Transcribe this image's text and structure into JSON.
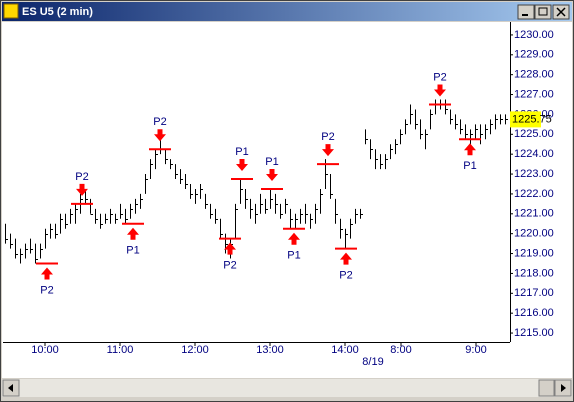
{
  "window": {
    "title": "ES U5 (2 min)"
  },
  "chart_data": {
    "type": "ohlc",
    "bar_color": "#000000",
    "marker_color": "#ff0000",
    "axis_text_color": "#000080",
    "last_price_color": "#ffff00",
    "xlim": [
      -0.4,
      101
    ],
    "ylim": [
      1214.55,
      1230.65
    ],
    "yticks": [
      {
        "value": 1215,
        "label": "1215.00"
      },
      {
        "value": 1216,
        "label": "1216.00"
      },
      {
        "value": 1217,
        "label": "1217.00"
      },
      {
        "value": 1218,
        "label": "1218.00"
      },
      {
        "value": 1219,
        "label": "1219.00"
      },
      {
        "value": 1220,
        "label": "1220.00"
      },
      {
        "value": 1221,
        "label": "1221.00"
      },
      {
        "value": 1222,
        "label": "1222.00"
      },
      {
        "value": 1223,
        "label": "1223.00"
      },
      {
        "value": 1224,
        "label": "1224.00"
      },
      {
        "value": 1225,
        "label": "1225.00"
      },
      {
        "value": 1226,
        "label": "1226.00"
      },
      {
        "value": 1227,
        "label": "1227.00"
      },
      {
        "value": 1228,
        "label": "1228.00"
      },
      {
        "value": 1229,
        "label": "1229.00"
      },
      {
        "value": 1230,
        "label": "1230.00"
      }
    ],
    "xticks": [
      {
        "value": 8,
        "label": "10:00"
      },
      {
        "value": 23,
        "label": "11:00"
      },
      {
        "value": 38,
        "label": "12:00"
      },
      {
        "value": 53,
        "label": "13:00"
      },
      {
        "value": 68,
        "label": "14:00"
      },
      {
        "value": 79.2,
        "label": "8:00"
      },
      {
        "value": 94.2,
        "label": "9:00"
      }
    ],
    "date_ticks": [
      {
        "value": 73.6,
        "label": "8/19"
      }
    ],
    "last_price": 1225.75,
    "bars": {
      "high": [
        1220.5,
        1220.0,
        1219.75,
        1219.25,
        1219.5,
        1219.75,
        1219.5,
        1219.5,
        1220.25,
        1220.5,
        1220.5,
        1221.0,
        1221.0,
        1221.25,
        1221.5,
        1222.0,
        1222.25,
        1221.75,
        1221.25,
        1221.0,
        1221.0,
        1221.25,
        1221.0,
        1221.5,
        1221.25,
        1221.5,
        1221.75,
        1222.0,
        1223.0,
        1223.75,
        1224.25,
        1224.75,
        1224.25,
        1223.75,
        1223.5,
        1223.25,
        1223.0,
        1222.5,
        1222.25,
        1222.5,
        1222.0,
        1221.5,
        1221.25,
        1220.75,
        1220.0,
        1219.75,
        1221.5,
        1222.75,
        1222.25,
        1221.75,
        1221.5,
        1222.0,
        1221.75,
        1222.25,
        1222.0,
        1221.5,
        1221.75,
        1221.25,
        1221.0,
        1221.25,
        1221.5,
        1221.0,
        1221.5,
        1222.25,
        1223.75,
        1223.0,
        1221.75,
        1220.75,
        1220.25,
        1220.75,
        1221.25,
        1221.25,
        1225.25,
        1224.75,
        1224.25,
        1224.0,
        1224.0,
        1224.5,
        1224.75,
        1225.25,
        1225.75,
        1226.5,
        1226.25,
        1225.75,
        1225.25,
        1226.25,
        1226.75,
        1226.75,
        1226.75,
        1226.25,
        1226.0,
        1225.75,
        1225.5,
        1225.25,
        1225.5,
        1225.5,
        1225.5,
        1225.75,
        1226.0,
        1226.0,
        1226.0,
        1226.0
      ],
      "low": [
        1219.5,
        1219.25,
        1218.75,
        1218.5,
        1218.75,
        1219.0,
        1218.5,
        1218.75,
        1219.25,
        1219.75,
        1219.75,
        1220.0,
        1220.25,
        1220.5,
        1220.5,
        1221.0,
        1221.5,
        1221.0,
        1220.5,
        1220.25,
        1220.5,
        1220.5,
        1220.5,
        1220.75,
        1220.5,
        1220.75,
        1221.0,
        1221.25,
        1222.0,
        1222.75,
        1223.25,
        1224.0,
        1223.5,
        1223.25,
        1222.75,
        1222.5,
        1222.25,
        1221.75,
        1221.5,
        1221.75,
        1221.25,
        1220.75,
        1220.5,
        1219.75,
        1219.0,
        1218.75,
        1219.75,
        1221.5,
        1221.25,
        1220.75,
        1220.5,
        1221.0,
        1221.0,
        1221.25,
        1221.0,
        1220.75,
        1221.0,
        1220.25,
        1220.25,
        1220.5,
        1220.5,
        1220.25,
        1220.5,
        1221.0,
        1222.25,
        1221.75,
        1220.5,
        1219.75,
        1219.25,
        1219.75,
        1220.5,
        1220.75,
        1224.5,
        1223.75,
        1223.25,
        1223.25,
        1223.25,
        1223.75,
        1224.0,
        1224.5,
        1225.0,
        1225.5,
        1225.25,
        1224.75,
        1224.25,
        1225.25,
        1226.0,
        1226.25,
        1226.0,
        1225.5,
        1225.25,
        1225.0,
        1224.75,
        1224.5,
        1224.75,
        1224.5,
        1224.75,
        1225.0,
        1225.25,
        1225.5,
        1225.5,
        1225.5
      ],
      "close": [
        1219.75,
        1219.5,
        1219.0,
        1219.0,
        1219.25,
        1219.25,
        1218.75,
        1219.25,
        1220.0,
        1220.25,
        1220.0,
        1220.75,
        1220.5,
        1221.0,
        1221.25,
        1221.75,
        1221.75,
        1221.0,
        1220.75,
        1220.5,
        1220.75,
        1221.0,
        1220.75,
        1221.0,
        1220.75,
        1221.25,
        1221.5,
        1221.75,
        1222.75,
        1223.5,
        1224.0,
        1224.25,
        1223.75,
        1223.5,
        1223.0,
        1222.75,
        1222.5,
        1222.0,
        1222.0,
        1222.25,
        1221.5,
        1221.0,
        1220.75,
        1220.0,
        1219.5,
        1219.5,
        1221.25,
        1222.25,
        1221.75,
        1221.25,
        1221.0,
        1221.5,
        1221.25,
        1221.75,
        1221.5,
        1221.0,
        1221.5,
        1220.75,
        1220.75,
        1221.0,
        1221.0,
        1220.75,
        1221.25,
        1222.0,
        1223.0,
        1222.0,
        1221.0,
        1220.25,
        1220.0,
        1220.5,
        1221.0,
        1221.0,
        1224.75,
        1224.25,
        1223.75,
        1223.5,
        1223.75,
        1224.25,
        1224.5,
        1225.0,
        1225.5,
        1226.0,
        1225.5,
        1225.0,
        1225.0,
        1226.0,
        1226.5,
        1226.5,
        1226.25,
        1225.75,
        1225.5,
        1225.25,
        1225.0,
        1225.0,
        1225.25,
        1225.0,
        1225.25,
        1225.5,
        1225.75,
        1225.75,
        1225.75,
        1225.75
      ]
    },
    "markers": [
      {
        "label": "P2",
        "x": 8.4,
        "price": 1218.5,
        "side": "below"
      },
      {
        "label": "P2",
        "x": 15.4,
        "price": 1221.5,
        "side": "above"
      },
      {
        "label": "P1",
        "x": 25.6,
        "price": 1220.5,
        "side": "below"
      },
      {
        "label": "P2",
        "x": 31,
        "price": 1224.25,
        "side": "above"
      },
      {
        "label": "P2",
        "x": 45,
        "price": 1219.75,
        "side": "below"
      },
      {
        "label": "P1",
        "x": 47.4,
        "price": 1222.75,
        "side": "above"
      },
      {
        "label": "P1",
        "x": 53.4,
        "price": 1222.25,
        "side": "above"
      },
      {
        "label": "P1",
        "x": 57.8,
        "price": 1220.25,
        "side": "below"
      },
      {
        "label": "P2",
        "x": 64.6,
        "price": 1223.5,
        "side": "above"
      },
      {
        "label": "P2",
        "x": 68.2,
        "price": 1219.25,
        "side": "below"
      },
      {
        "label": "P2",
        "x": 87,
        "price": 1226.5,
        "side": "above"
      },
      {
        "label": "P1",
        "x": 93,
        "price": 1224.75,
        "side": "below"
      }
    ]
  }
}
